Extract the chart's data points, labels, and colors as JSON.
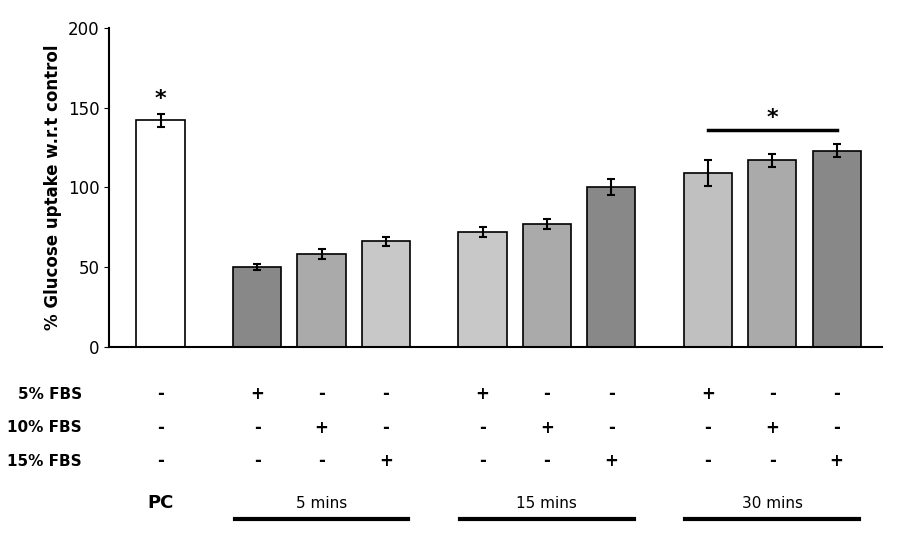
{
  "bar_values": [
    142,
    50,
    58,
    66,
    72,
    77,
    100,
    109,
    117,
    123
  ],
  "bar_errors": [
    4,
    2,
    3,
    3,
    3,
    3,
    5,
    8,
    4,
    4
  ],
  "bar_colors": [
    "#ffffff",
    "#888888",
    "#aaaaaa",
    "#cccccc",
    "#888888",
    "#aaaaaa",
    "#cccccc",
    "#aaaaaa",
    "#c0c0c0",
    "#888888"
  ],
  "bar_edge_colors": [
    "#000000",
    "#000000",
    "#000000",
    "#000000",
    "#000000",
    "#000000",
    "#000000",
    "#000000",
    "#000000",
    "#000000"
  ],
  "ylabel": "% Glucose uptake w.r.t control",
  "ylim": [
    0,
    200
  ],
  "yticks": [
    0,
    50,
    100,
    150,
    200
  ],
  "labels_5pct": [
    "-",
    "+",
    "-",
    "-",
    "+",
    "-",
    "-",
    "+",
    "-",
    "-"
  ],
  "labels_10pct": [
    "-",
    "-",
    "+",
    "-",
    "-",
    "+",
    "-",
    "-",
    "+",
    "-"
  ],
  "labels_15pct": [
    "-",
    "-",
    "-",
    "+",
    "-",
    "-",
    "+",
    "-",
    "-",
    "+"
  ],
  "background_color": "#ffffff",
  "bar_width": 0.75,
  "x_positions": [
    0,
    1.5,
    2.5,
    3.5,
    5.0,
    6.0,
    7.0,
    8.5,
    9.5,
    10.5
  ]
}
